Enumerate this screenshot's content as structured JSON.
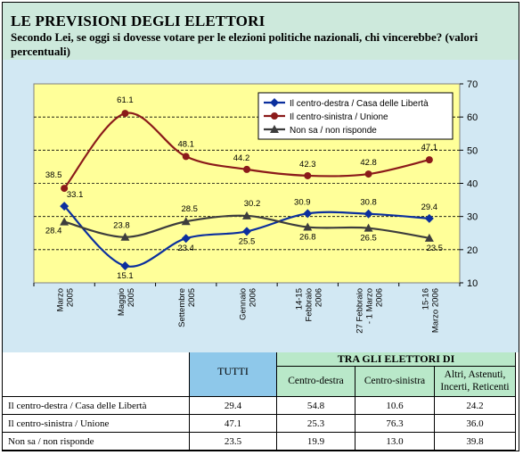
{
  "header": {
    "title": "LE PREVISIONI DEGLI ELETTORI",
    "subtitle": "Secondo Lei, se oggi si dovesse votare per le elezioni politiche nazionali, chi vincerebbe? (valori percentuali)"
  },
  "chart_data": {
    "type": "line",
    "categories": [
      [
        "Marzo",
        "2005"
      ],
      [
        "Maggio",
        "2005"
      ],
      [
        "Settembre",
        "2005"
      ],
      [
        "Gennaio",
        "2006"
      ],
      [
        "14-15",
        "Febbraio",
        "2006"
      ],
      [
        "27 Febbraio",
        "- 1 Marzo",
        "2006"
      ],
      [
        "15-16",
        "Marzo 2006"
      ]
    ],
    "y_ticks": [
      "10",
      "20",
      "30",
      "40",
      "50",
      "60",
      "70"
    ],
    "ylim": [
      10,
      70
    ],
    "grid": "horizontal-dashed",
    "legend_position": "top-right",
    "series": [
      {
        "name": "Il centro-destra / Casa delle Libertà",
        "color": "#0b2f9e",
        "marker": "diamond",
        "values": [
          33.1,
          15.1,
          23.4,
          25.5,
          30.9,
          30.8,
          29.4
        ],
        "labels": [
          "33.1",
          "15.1",
          "23.4",
          "25.5",
          "30.9",
          "30.8",
          "29.4"
        ]
      },
      {
        "name": "Il centro-sinistra / Unione",
        "color": "#8b1a1a",
        "marker": "circle",
        "values": [
          38.5,
          61.1,
          48.1,
          44.2,
          42.3,
          42.8,
          47.1
        ],
        "labels": [
          "38.5",
          "61.1",
          "48.1",
          "44.2",
          "42.3",
          "42.8",
          "47.1"
        ]
      },
      {
        "name": "Non sa / non risponde",
        "color": "#3d3d3d",
        "marker": "triangle",
        "values": [
          28.4,
          23.8,
          28.5,
          30.2,
          26.8,
          26.5,
          23.5
        ],
        "labels": [
          "28.4",
          "23.8",
          "28.5",
          "30.2",
          "26.8",
          "26.5",
          "23.5"
        ]
      }
    ],
    "colors": {
      "plot_bg": "#ffff99",
      "outer_bg": "#d2e8f3"
    }
  },
  "table": {
    "group_header": "TRA GLI ELETTORI DI",
    "columns": [
      "TUTTI",
      "Centro-destra",
      "Centro-sinistra",
      "Altri, Astenuti, Incerti, Reticenti"
    ],
    "rows": [
      {
        "label": "Il centro-destra / Casa delle Libertà",
        "values": [
          "29.4",
          "54.8",
          "10.6",
          "24.2"
        ]
      },
      {
        "label": "Il centro-sinistra / Unione",
        "values": [
          "47.1",
          "25.3",
          "76.3",
          "36.0"
        ]
      },
      {
        "label": "Non sa / non risponde",
        "values": [
          "23.5",
          "19.9",
          "13.0",
          "39.8"
        ]
      }
    ],
    "colors": {
      "tutti_bg": "#8ec8ea",
      "group_bg": "#b9e8c9",
      "row_bg": "#ffffff"
    }
  }
}
